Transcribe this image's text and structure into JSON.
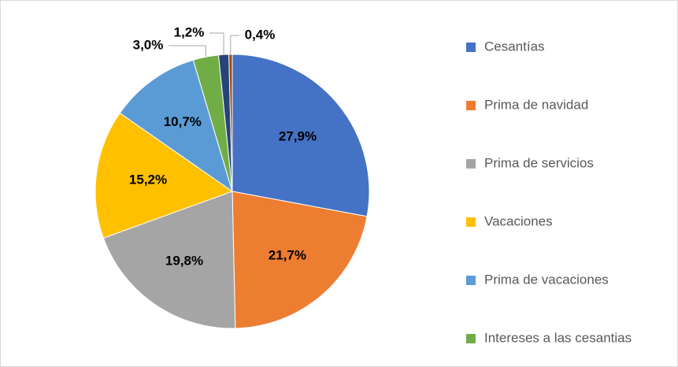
{
  "chart_data": {
    "type": "pie",
    "categories": [
      "Cesantías",
      "Prima de navidad",
      "Prima de servicios",
      "Vacaciones",
      "Prima de vacaciones",
      "Intereses a las cesantias",
      null,
      null
    ],
    "values": [
      27.9,
      21.7,
      19.8,
      15.2,
      10.7,
      3.0,
      1.2,
      0.4
    ],
    "value_labels": [
      "27,9%",
      "21,7%",
      "19,8%",
      "15,2%",
      "10,7%",
      "3,0%",
      "1,2%",
      "0,4%"
    ],
    "colors": [
      "#4472c4",
      "#ed7d31",
      "#a5a5a5",
      "#ffc000",
      "#5b9bd5",
      "#70ad47",
      "#264478",
      "#9e480e"
    ],
    "legend": "right"
  }
}
